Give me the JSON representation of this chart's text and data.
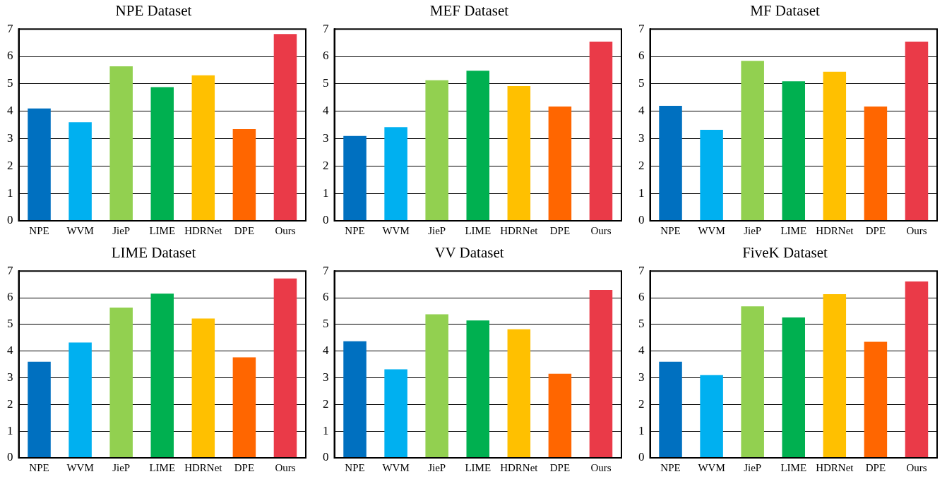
{
  "chart_data": [
    {
      "type": "bar",
      "title": "NPE Dataset",
      "categories": [
        "NPE",
        "WVM",
        "JieP",
        "LIME",
        "HDRNet",
        "DPE",
        "Ours"
      ],
      "values": [
        4.1,
        3.6,
        5.64,
        4.88,
        5.31,
        3.35,
        6.82
      ],
      "colors": [
        "#0070c0",
        "#00b0f0",
        "#92d050",
        "#00b050",
        "#ffc000",
        "#ff6600",
        "#ea3a48"
      ],
      "ylim": [
        0,
        7
      ],
      "yticks": [
        0,
        1,
        2,
        3,
        4,
        5,
        6,
        7
      ],
      "grid": "y"
    },
    {
      "type": "bar",
      "title": "MEF Dataset",
      "categories": [
        "NPE",
        "WVM",
        "JieP",
        "LIME",
        "HDRNet",
        "DPE",
        "Ours"
      ],
      "values": [
        3.1,
        3.42,
        5.13,
        5.48,
        4.92,
        4.17,
        6.54
      ],
      "colors": [
        "#0070c0",
        "#00b0f0",
        "#92d050",
        "#00b050",
        "#ffc000",
        "#ff6600",
        "#ea3a48"
      ],
      "ylim": [
        0,
        7
      ],
      "yticks": [
        0,
        1,
        2,
        3,
        4,
        5,
        6,
        7
      ],
      "grid": "y"
    },
    {
      "type": "bar",
      "title": "MF Dataset",
      "categories": [
        "NPE",
        "WVM",
        "JieP",
        "LIME",
        "HDRNet",
        "DPE",
        "Ours"
      ],
      "values": [
        4.2,
        3.32,
        5.84,
        5.09,
        5.44,
        4.17,
        6.54
      ],
      "colors": [
        "#0070c0",
        "#00b0f0",
        "#92d050",
        "#00b050",
        "#ffc000",
        "#ff6600",
        "#ea3a48"
      ],
      "ylim": [
        0,
        7
      ],
      "yticks": [
        0,
        1,
        2,
        3,
        4,
        5,
        6,
        7
      ],
      "grid": "y"
    },
    {
      "type": "bar",
      "title": "LIME Dataset",
      "categories": [
        "NPE",
        "WVM",
        "JieP",
        "LIME",
        "HDRNet",
        "DPE",
        "Ours"
      ],
      "values": [
        3.6,
        4.32,
        5.63,
        6.15,
        5.22,
        3.77,
        6.72
      ],
      "colors": [
        "#0070c0",
        "#00b0f0",
        "#92d050",
        "#00b050",
        "#ffc000",
        "#ff6600",
        "#ea3a48"
      ],
      "ylim": [
        0,
        7
      ],
      "yticks": [
        0,
        1,
        2,
        3,
        4,
        5,
        6,
        7
      ],
      "grid": "y"
    },
    {
      "type": "bar",
      "title": "VV Dataset",
      "categories": [
        "NPE",
        "WVM",
        "JieP",
        "LIME",
        "HDRNet",
        "DPE",
        "Ours"
      ],
      "values": [
        4.37,
        3.32,
        5.38,
        5.15,
        4.82,
        3.15,
        6.29
      ],
      "colors": [
        "#0070c0",
        "#00b0f0",
        "#92d050",
        "#00b050",
        "#ffc000",
        "#ff6600",
        "#ea3a48"
      ],
      "ylim": [
        0,
        7
      ],
      "yticks": [
        0,
        1,
        2,
        3,
        4,
        5,
        6,
        7
      ],
      "grid": "y"
    },
    {
      "type": "bar",
      "title": "FiveK Dataset",
      "categories": [
        "NPE",
        "WVM",
        "JieP",
        "LIME",
        "HDRNet",
        "DPE",
        "Ours"
      ],
      "values": [
        3.6,
        3.1,
        5.68,
        5.26,
        6.13,
        4.35,
        6.61
      ],
      "colors": [
        "#0070c0",
        "#00b0f0",
        "#92d050",
        "#00b050",
        "#ffc000",
        "#ff6600",
        "#ea3a48"
      ],
      "ylim": [
        0,
        7
      ],
      "yticks": [
        0,
        1,
        2,
        3,
        4,
        5,
        6,
        7
      ],
      "grid": "y"
    }
  ]
}
